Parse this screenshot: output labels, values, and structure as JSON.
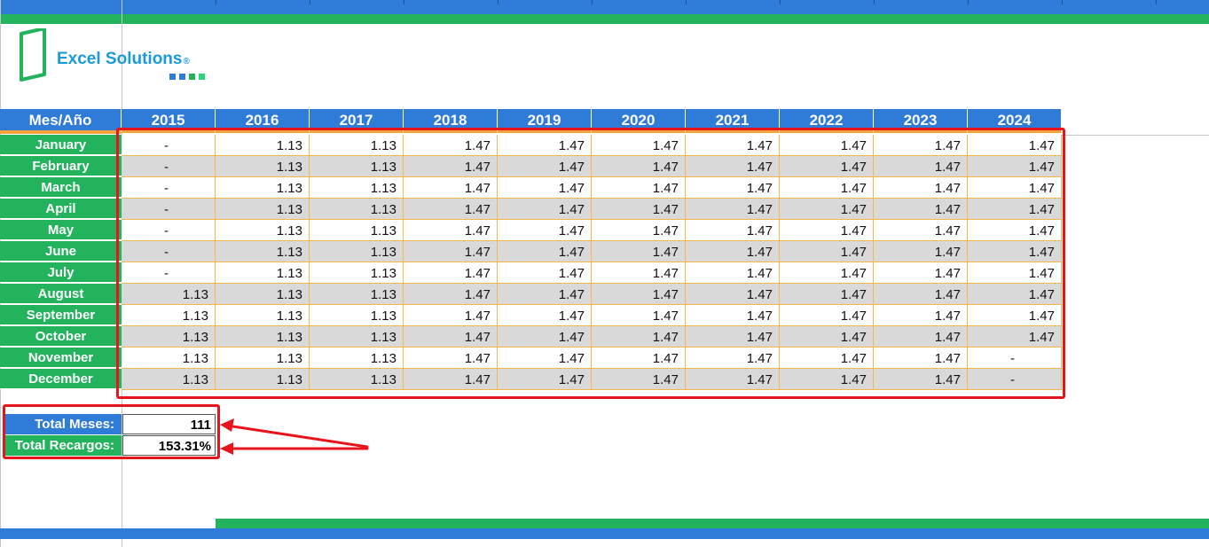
{
  "logo": {
    "name": "Excel Solutions",
    "reg": "®",
    "colors": {
      "text": "#1a9ad6",
      "mark": "#22b35c",
      "dots": [
        "#2f7bd8",
        "#2f7bd8",
        "#22b35c",
        "#2ed47a"
      ]
    }
  },
  "table": {
    "corner_label": "Mes/Año",
    "years": [
      "2015",
      "2016",
      "2017",
      "2018",
      "2019",
      "2020",
      "2021",
      "2022",
      "2023",
      "2024"
    ],
    "rows": [
      {
        "month": "January",
        "values": [
          "-",
          "1.13",
          "1.13",
          "1.47",
          "1.47",
          "1.47",
          "1.47",
          "1.47",
          "1.47",
          "1.47"
        ]
      },
      {
        "month": "February",
        "values": [
          "-",
          "1.13",
          "1.13",
          "1.47",
          "1.47",
          "1.47",
          "1.47",
          "1.47",
          "1.47",
          "1.47"
        ]
      },
      {
        "month": "March",
        "values": [
          "-",
          "1.13",
          "1.13",
          "1.47",
          "1.47",
          "1.47",
          "1.47",
          "1.47",
          "1.47",
          "1.47"
        ]
      },
      {
        "month": "April",
        "values": [
          "-",
          "1.13",
          "1.13",
          "1.47",
          "1.47",
          "1.47",
          "1.47",
          "1.47",
          "1.47",
          "1.47"
        ]
      },
      {
        "month": "May",
        "values": [
          "-",
          "1.13",
          "1.13",
          "1.47",
          "1.47",
          "1.47",
          "1.47",
          "1.47",
          "1.47",
          "1.47"
        ]
      },
      {
        "month": "June",
        "values": [
          "-",
          "1.13",
          "1.13",
          "1.47",
          "1.47",
          "1.47",
          "1.47",
          "1.47",
          "1.47",
          "1.47"
        ]
      },
      {
        "month": "July",
        "values": [
          "-",
          "1.13",
          "1.13",
          "1.47",
          "1.47",
          "1.47",
          "1.47",
          "1.47",
          "1.47",
          "1.47"
        ]
      },
      {
        "month": "August",
        "values": [
          "1.13",
          "1.13",
          "1.13",
          "1.47",
          "1.47",
          "1.47",
          "1.47",
          "1.47",
          "1.47",
          "1.47"
        ]
      },
      {
        "month": "September",
        "values": [
          "1.13",
          "1.13",
          "1.13",
          "1.47",
          "1.47",
          "1.47",
          "1.47",
          "1.47",
          "1.47",
          "1.47"
        ]
      },
      {
        "month": "October",
        "values": [
          "1.13",
          "1.13",
          "1.13",
          "1.47",
          "1.47",
          "1.47",
          "1.47",
          "1.47",
          "1.47",
          "1.47"
        ]
      },
      {
        "month": "November",
        "values": [
          "1.13",
          "1.13",
          "1.13",
          "1.47",
          "1.47",
          "1.47",
          "1.47",
          "1.47",
          "1.47",
          "-"
        ]
      },
      {
        "month": "December",
        "values": [
          "1.13",
          "1.13",
          "1.13",
          "1.47",
          "1.47",
          "1.47",
          "1.47",
          "1.47",
          "1.47",
          "-"
        ]
      }
    ]
  },
  "totals": {
    "meses_label": "Total Meses:",
    "meses_value": "111",
    "recargos_label": "Total Recargos:",
    "recargos_value": "153.31%"
  },
  "colors": {
    "blue": "#2f7bd8",
    "green": "#22b35c",
    "orange": "#f2a33a",
    "gray_row": "#d9d9d9",
    "annotation_red": "#e8141b"
  }
}
